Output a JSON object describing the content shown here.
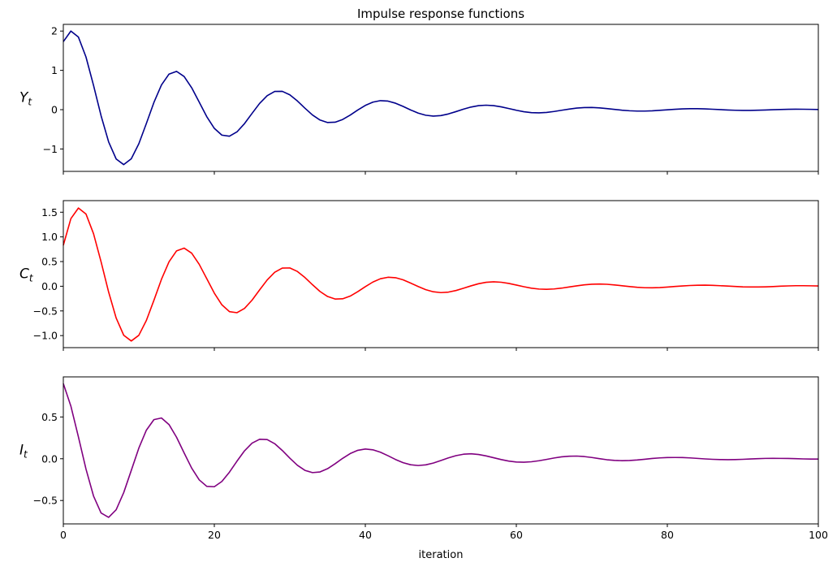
{
  "chart_data": {
    "type": "line",
    "title": "Impulse response functions",
    "xlabel": "iteration",
    "xlim": [
      0,
      100
    ],
    "xticks": [
      0,
      20,
      40,
      60,
      80,
      100
    ],
    "grid": false,
    "x": [
      0,
      1,
      2,
      3,
      4,
      5,
      6,
      7,
      8,
      9,
      10,
      11,
      12,
      13,
      14,
      15,
      16,
      17,
      18,
      19,
      20,
      21,
      22,
      23,
      24,
      25,
      26,
      27,
      28,
      29,
      30,
      31,
      32,
      33,
      34,
      35,
      36,
      37,
      38,
      39,
      40,
      41,
      42,
      43,
      44,
      45,
      46,
      47,
      48,
      49,
      50,
      51,
      52,
      53,
      54,
      55,
      56,
      57,
      58,
      59,
      60,
      61,
      62,
      63,
      64,
      65,
      66,
      67,
      68,
      69,
      70,
      71,
      72,
      73,
      74,
      75,
      76,
      77,
      78,
      79,
      80,
      81,
      82,
      83,
      84,
      85,
      86,
      87,
      88,
      89,
      90,
      91,
      92,
      93,
      94,
      95,
      96,
      97,
      98,
      99,
      100
    ],
    "panels": [
      {
        "ylabel_base": "Y",
        "ylabel_sub": "t",
        "color": "#00008b",
        "ylim": [
          -1.57,
          2.17
        ],
        "yticks": [
          -1,
          0,
          1,
          2
        ],
        "ytick_labels": [
          "−1",
          "0",
          "1",
          "2"
        ],
        "values": [
          1.73,
          2.0,
          1.846,
          1.341,
          0.619,
          -0.154,
          -0.819,
          -1.255,
          -1.398,
          -1.249,
          -0.867,
          -0.351,
          0.184,
          0.629,
          0.905,
          0.974,
          0.843,
          0.558,
          0.191,
          -0.178,
          -0.475,
          -0.648,
          -0.675,
          -0.565,
          -0.354,
          -0.094,
          0.159,
          0.356,
          0.463,
          0.467,
          0.378,
          0.222,
          0.038,
          -0.135,
          -0.264,
          -0.327,
          -0.319,
          -0.249,
          -0.137,
          -0.009,
          0.108,
          0.192,
          0.23,
          0.218,
          0.164,
          0.083,
          -0.007,
          -0.087,
          -0.142,
          -0.164,
          -0.151,
          -0.109,
          -0.05,
          0.013,
          0.067,
          0.102,
          0.114,
          0.102,
          0.071,
          0.029,
          -0.015,
          -0.052,
          -0.075,
          -0.081,
          -0.07,
          -0.046,
          -0.015,
          0.015,
          0.04,
          0.054,
          0.056,
          0.046,
          0.028,
          0.007,
          -0.013,
          -0.028,
          -0.036,
          -0.036,
          -0.029,
          -0.017,
          -0.003,
          0.01,
          0.02,
          0.025,
          0.025,
          0.02,
          0.011,
          0.001,
          -0.008,
          -0.015,
          -0.019,
          -0.018,
          -0.014,
          -0.008,
          -0.001,
          0.005,
          0.01,
          0.012,
          0.011,
          0.008,
          0.004
        ]
      },
      {
        "ylabel_base": "C",
        "ylabel_sub": "t",
        "color": "#ff0000",
        "ylim": [
          -1.244,
          1.735
        ],
        "yticks": [
          -1.0,
          -0.5,
          0.0,
          0.5,
          1.0,
          1.5
        ],
        "ytick_labels": [
          "−1.0",
          "−0.5",
          "0.0",
          "0.5",
          "1.0",
          "1.5"
        ],
        "values": [
          0.83,
          1.37,
          1.585,
          1.464,
          1.065,
          0.495,
          -0.117,
          -0.645,
          -0.993,
          -1.109,
          -0.994,
          -0.693,
          -0.284,
          0.141,
          0.496,
          0.717,
          0.773,
          0.67,
          0.444,
          0.153,
          -0.14,
          -0.376,
          -0.514,
          -0.536,
          -0.449,
          -0.281,
          -0.074,
          0.127,
          0.283,
          0.368,
          0.371,
          0.3,
          0.177,
          0.031,
          -0.106,
          -0.208,
          -0.259,
          -0.254,
          -0.199,
          -0.11,
          -0.008,
          0.085,
          0.152,
          0.182,
          0.173,
          0.13,
          0.065,
          -0.006,
          -0.069,
          -0.112,
          -0.129,
          -0.119,
          -0.087,
          -0.041,
          0.008,
          0.051,
          0.08,
          0.09,
          0.081,
          0.057,
          0.024,
          -0.01,
          -0.039,
          -0.057,
          -0.062,
          -0.055,
          -0.038,
          -0.015,
          0.008,
          0.028,
          0.041,
          0.045,
          0.04,
          0.027,
          0.01,
          -0.007,
          -0.021,
          -0.03,
          -0.032,
          -0.027,
          -0.017,
          -0.005,
          0.006,
          0.015,
          0.021,
          0.022,
          0.018,
          0.011,
          0.003,
          -0.005,
          -0.012,
          -0.015,
          -0.015,
          -0.012,
          -0.006,
          0.001,
          0.007,
          0.011,
          0.011,
          0.009,
          0.006
        ]
      },
      {
        "ylabel_base": "I",
        "ylabel_sub": "t",
        "color": "#800080",
        "ylim": [
          -0.78,
          0.98
        ],
        "yticks": [
          -0.5,
          0.0,
          0.5
        ],
        "ytick_labels": [
          "−0.5",
          "0.0",
          "0.5"
        ],
        "values": [
          0.9,
          0.63,
          0.261,
          -0.123,
          -0.446,
          -0.649,
          -0.702,
          -0.61,
          -0.405,
          -0.14,
          0.127,
          0.342,
          0.468,
          0.488,
          0.409,
          0.257,
          0.07,
          -0.112,
          -0.253,
          -0.331,
          -0.335,
          -0.272,
          -0.161,
          -0.029,
          0.095,
          0.187,
          0.233,
          0.229,
          0.18,
          0.099,
          0.007,
          -0.078,
          -0.139,
          -0.166,
          -0.158,
          -0.119,
          -0.06,
          0.005,
          0.062,
          0.101,
          0.116,
          0.107,
          0.078,
          0.036,
          -0.009,
          -0.047,
          -0.072,
          -0.081,
          -0.073,
          -0.052,
          -0.022,
          0.01,
          0.037,
          0.054,
          0.059,
          0.051,
          0.034,
          0.012,
          -0.01,
          -0.028,
          -0.039,
          -0.042,
          -0.036,
          -0.024,
          -0.008,
          0.009,
          0.023,
          0.03,
          0.032,
          0.026,
          0.015,
          0.001,
          -0.012,
          -0.02,
          -0.023,
          -0.021,
          -0.015,
          -0.006,
          0.003,
          0.01,
          0.014,
          0.015,
          0.014,
          0.01,
          0.004,
          -0.002,
          -0.007,
          -0.01,
          -0.011,
          -0.01,
          -0.007,
          -0.003,
          0.001,
          0.004,
          0.005,
          0.004,
          0.003,
          0.001,
          -0.002,
          -0.004,
          -0.004
        ]
      }
    ]
  }
}
